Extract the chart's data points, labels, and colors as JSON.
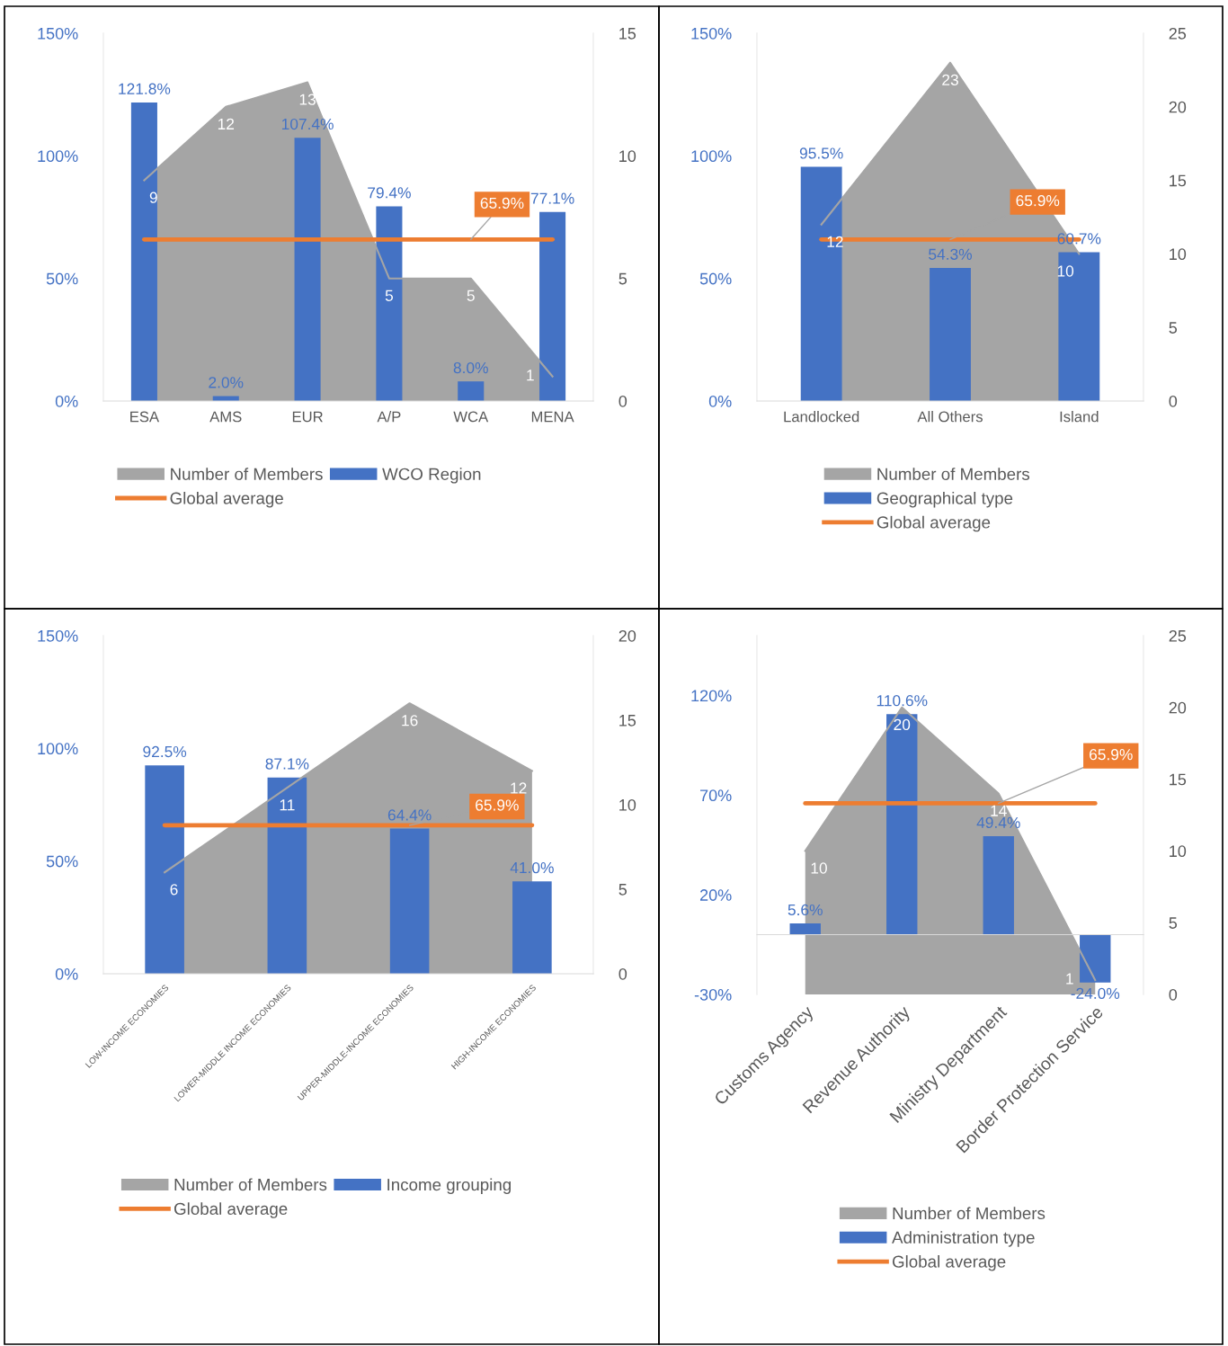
{
  "chart_data": [
    {
      "type": "bar",
      "categories": [
        "ESA",
        "AMS",
        "EUR",
        "A/P",
        "WCA",
        "MENA"
      ],
      "ylim": [
        0,
        150
      ],
      "yticks": [
        {
          "value": 0,
          "label": "0%"
        },
        {
          "value": 50,
          "label": "50%"
        },
        {
          "value": 100,
          "label": "100%"
        },
        {
          "value": 150,
          "label": "150%"
        }
      ],
      "y2lim": [
        0,
        15
      ],
      "y2ticks": [
        0,
        5,
        10,
        15
      ],
      "legend": "bottom",
      "marker": "none",
      "grid": false,
      "series": [
        {
          "name": "Number of Members",
          "type": "area",
          "axis": "y2",
          "color": "#a5a5a5",
          "values": [
            9,
            12,
            13,
            5,
            5,
            1
          ],
          "value_labels": [
            "9",
            "12",
            "13",
            "5",
            "5",
            "1"
          ]
        },
        {
          "name": "WCO Region",
          "type": "bar",
          "color": "#4472c4",
          "values": [
            121.8,
            2.0,
            107.4,
            79.4,
            8.0,
            77.1
          ],
          "value_labels": [
            "121.8%",
            "2.0%",
            "107.4%",
            "79.4%",
            "8.0%",
            "77.1%"
          ]
        },
        {
          "name": "Global average",
          "type": "line",
          "color": "#ed7d31",
          "values": [
            65.9,
            65.9,
            65.9,
            65.9,
            65.9,
            65.9
          ],
          "value_labels": [
            null,
            null,
            null,
            null,
            "65.9%",
            null
          ]
        }
      ]
    },
    {
      "type": "bar",
      "categories": [
        "Landlocked",
        "All Others",
        "Island"
      ],
      "ylim": [
        0,
        150
      ],
      "yticks": [
        {
          "value": 0,
          "label": "0%"
        },
        {
          "value": 50,
          "label": "50%"
        },
        {
          "value": 100,
          "label": "100%"
        },
        {
          "value": 150,
          "label": "150%"
        }
      ],
      "y2lim": [
        0,
        25
      ],
      "y2ticks": [
        0,
        5,
        10,
        15,
        20,
        25
      ],
      "legend": "bottom",
      "marker": "none",
      "grid": false,
      "series": [
        {
          "name": "Number of Members",
          "type": "area",
          "axis": "y2",
          "color": "#a5a5a5",
          "values": [
            12,
            23,
            10
          ],
          "value_labels": [
            "12",
            "23",
            "10"
          ]
        },
        {
          "name": "Geographical type",
          "type": "bar",
          "color": "#4472c4",
          "values": [
            95.5,
            54.3,
            60.7
          ],
          "value_labels": [
            "95.5%",
            "54.3%",
            "60.7%"
          ]
        },
        {
          "name": "Global average",
          "type": "line",
          "color": "#ed7d31",
          "values": [
            65.9,
            65.9,
            65.9
          ],
          "value_labels": [
            null,
            "65.9%",
            null
          ]
        }
      ]
    },
    {
      "type": "bar",
      "categories": [
        "LOW-INCOME ECONOMIES",
        "LOWER-MIDDLE INCOME ECONOMIES",
        "UPPER-MIDDLE-INCOME ECONOMIES",
        "HIGH-INCOME ECONOMIES"
      ],
      "ylim": [
        0,
        150
      ],
      "yticks": [
        {
          "value": 0,
          "label": "0%"
        },
        {
          "value": 50,
          "label": "50%"
        },
        {
          "value": 100,
          "label": "100%"
        },
        {
          "value": 150,
          "label": "150%"
        }
      ],
      "y2lim": [
        0,
        20
      ],
      "y2ticks": [
        0,
        5,
        10,
        15,
        20
      ],
      "legend": "bottom",
      "marker": "none",
      "grid": false,
      "series": [
        {
          "name": "Number of Members",
          "type": "area",
          "axis": "y2",
          "color": "#a5a5a5",
          "values": [
            6,
            11,
            16,
            12
          ],
          "value_labels": [
            "6",
            "11",
            "16",
            "12"
          ]
        },
        {
          "name": "Income grouping",
          "type": "bar",
          "color": "#4472c4",
          "values": [
            92.5,
            87.1,
            64.4,
            41.0
          ],
          "value_labels": [
            "92.5%",
            "87.1%",
            "64.4%",
            "41.0%"
          ]
        },
        {
          "name": "Global average",
          "type": "line",
          "color": "#ed7d31",
          "values": [
            65.9,
            65.9,
            65.9,
            65.9
          ],
          "value_labels": [
            null,
            null,
            "65.9%",
            null
          ]
        }
      ]
    },
    {
      "type": "bar",
      "categories": [
        "Customs Agency",
        "Revenue Authority",
        "Ministry Department",
        "Border Protection Service"
      ],
      "ylim": [
        -30,
        150
      ],
      "yticks": [
        {
          "value": -30,
          "label": "-30%"
        },
        {
          "value": 20,
          "label": "20%"
        },
        {
          "value": 70,
          "label": "70%"
        },
        {
          "value": 120,
          "label": "120%"
        }
      ],
      "y2lim": [
        0,
        25
      ],
      "y2ticks": [
        0,
        5,
        10,
        15,
        20,
        25
      ],
      "legend": "bottom",
      "marker": "none",
      "grid": false,
      "series": [
        {
          "name": "Number of Members",
          "type": "area",
          "axis": "y2",
          "color": "#a5a5a5",
          "values": [
            10,
            20,
            14,
            1
          ],
          "value_labels": [
            "10",
            "20",
            "14",
            "1"
          ]
        },
        {
          "name": "Administration type",
          "type": "bar",
          "color": "#4472c4",
          "values": [
            5.6,
            110.6,
            49.4,
            -24.0
          ],
          "value_labels": [
            "5.6%",
            "110.6%",
            "49.4%",
            "-24.0%"
          ]
        },
        {
          "name": "Global average",
          "type": "line",
          "color": "#ed7d31",
          "values": [
            65.9,
            65.9,
            65.9,
            65.9
          ],
          "value_labels": [
            null,
            null,
            "65.9%",
            null
          ]
        }
      ]
    }
  ]
}
